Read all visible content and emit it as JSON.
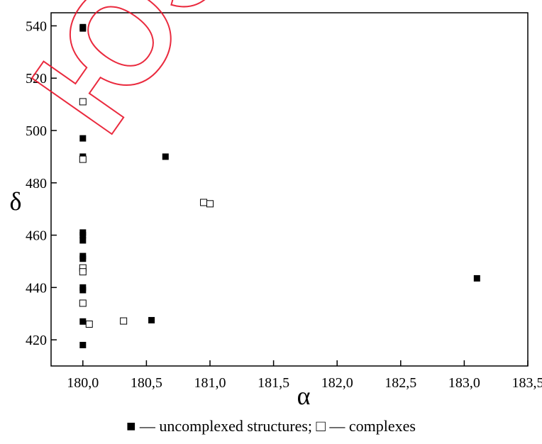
{
  "chart_data": {
    "type": "scatter",
    "xlabel": "α",
    "ylabel": "δ",
    "xlim": [
      179.75,
      183.5
    ],
    "ylim": [
      410,
      545
    ],
    "xticks": [
      "180,0",
      "180,5",
      "181,0",
      "181,5",
      "182,0",
      "182,5",
      "183,0",
      "183,5"
    ],
    "xtick_values": [
      180.0,
      180.5,
      181.0,
      181.5,
      182.0,
      182.5,
      183.0,
      183.5
    ],
    "yticks": [
      "420",
      "440",
      "460",
      "480",
      "500",
      "520",
      "540"
    ],
    "ytick_values": [
      420,
      440,
      460,
      480,
      500,
      520,
      540
    ],
    "series": [
      {
        "name": "uncomplexed structures",
        "marker": "filled-square",
        "color": "#000000",
        "points": [
          [
            180.0,
            539
          ],
          [
            180.0,
            539.5
          ],
          [
            180.0,
            497
          ],
          [
            180.0,
            490
          ],
          [
            180.0,
            461
          ],
          [
            180.0,
            460
          ],
          [
            180.0,
            458
          ],
          [
            180.0,
            452
          ],
          [
            180.0,
            451
          ],
          [
            180.0,
            440
          ],
          [
            180.0,
            439
          ],
          [
            180.0,
            427
          ],
          [
            180.0,
            418
          ],
          [
            180.54,
            427.5
          ],
          [
            180.65,
            490
          ],
          [
            183.1,
            443.5
          ]
        ]
      },
      {
        "name": "complexes",
        "marker": "open-square",
        "color": "#000000",
        "points": [
          [
            180.0,
            511
          ],
          [
            180.0,
            489
          ],
          [
            180.0,
            447.5
          ],
          [
            180.0,
            446
          ],
          [
            180.0,
            434
          ],
          [
            180.05,
            426
          ],
          [
            180.32,
            427.2
          ],
          [
            180.95,
            472.5
          ],
          [
            181.0,
            472
          ]
        ]
      }
    ]
  },
  "legend": {
    "filled_symbol": "■",
    "open_symbol": "□",
    "dash": "—",
    "uncomplexed_text": "uncomplexed structures;",
    "complexes_text": "complexes"
  },
  "watermark": {
    "text": "ЮЗУ",
    "color": "#e8142a"
  }
}
